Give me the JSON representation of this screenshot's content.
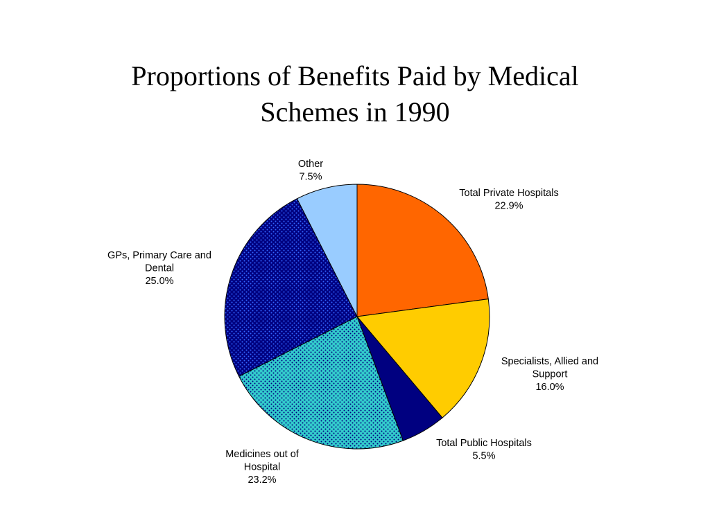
{
  "title": {
    "line1": "Proportions of Benefits Paid by Medical",
    "line2": "Schemes in 1990"
  },
  "chart_data": {
    "type": "pie",
    "title": "Proportions of Benefits Paid by Medical Schemes in 1990",
    "start": "12 o'clock, clockwise",
    "slices": [
      {
        "label_lines": [
          "Total Private Hospitals"
        ],
        "value": 22.9,
        "value_label": "22.9%",
        "color": "#FF6600",
        "pattern": "solid"
      },
      {
        "label_lines": [
          "Specialists, Allied and",
          "Support"
        ],
        "value": 16.0,
        "value_label": "16.0%",
        "color": "#FFCC00",
        "pattern": "solid"
      },
      {
        "label_lines": [
          "Total Public Hospitals"
        ],
        "value": 5.5,
        "value_label": "5.5%",
        "color": "#000080",
        "pattern": "solid"
      },
      {
        "label_lines": [
          "Medicines out of",
          "Hospital"
        ],
        "value": 23.2,
        "value_label": "23.2%",
        "color": "#33CCCC",
        "pattern": "dots",
        "pattern_color": "#000080"
      },
      {
        "label_lines": [
          "GPs, Primary Care and",
          "Dental"
        ],
        "value": 25.0,
        "value_label": "25.0%",
        "color": "#000080",
        "pattern": "dots",
        "pattern_color": "#3366FF"
      },
      {
        "label_lines": [
          "Other"
        ],
        "value": 7.5,
        "value_label": "7.5%",
        "color": "#99CCFF",
        "pattern": "solid"
      }
    ]
  }
}
